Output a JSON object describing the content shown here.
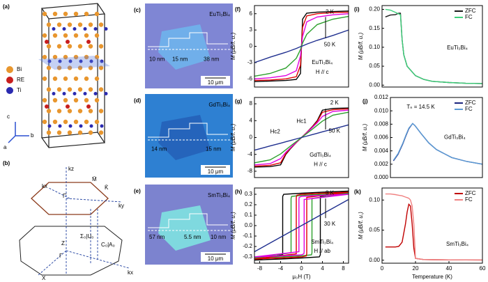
{
  "structure": {
    "label": "(a)",
    "legend": [
      "Bi",
      "RE",
      "Ti"
    ],
    "axes": [
      "c",
      "b",
      "a"
    ]
  },
  "brillouin_zone": {
    "label": "(b)",
    "points": [
      "kz",
      "M̄",
      "Γ̄",
      "K̄",
      "ky",
      "kx",
      "Σ₀|U₀",
      "C₀|A₀",
      "Z",
      "Γ",
      "X",
      "kx"
    ]
  },
  "micrographs": [
    {
      "label": "(c)",
      "compound": "EuTi₃Bi₄",
      "thickness": [
        "10 nm",
        "15 nm",
        "38 nm"
      ],
      "scale": "10 μm"
    },
    {
      "label": "(d)",
      "compound": "GdTi₃Bi₄",
      "thickness": [
        "14 nm",
        "15 nm"
      ],
      "scale": "10 μm"
    },
    {
      "label": "(e)",
      "compound": "SmTi₃Bi₄",
      "thickness": [
        "57 nm",
        "5.5 nm",
        "10 nm"
      ],
      "scale": "10 μm"
    }
  ],
  "chart_data": [
    {
      "type": "line",
      "label": "(f)",
      "ylabel": "M (μB/f. u.)",
      "x": [
        -9,
        -6,
        -3,
        -1,
        -0.2,
        0,
        0.2,
        1,
        3,
        6,
        9
      ],
      "xlim": [
        -9,
        9
      ],
      "ylim": [
        -7.5,
        7.5
      ],
      "yticks": [
        -6,
        -3,
        0,
        3,
        6
      ],
      "series": [
        {
          "color": "#000000",
          "values": [
            -6.5,
            -6.4,
            -6.3,
            -6.1,
            -5,
            0,
            5,
            6.1,
            6.3,
            6.4,
            6.5
          ]
        },
        {
          "color": "#e00000",
          "values": [
            -6.3,
            -6.2,
            -6,
            -5.6,
            -3.5,
            0,
            3.5,
            5.6,
            6,
            6.2,
            6.3
          ]
        },
        {
          "color": "#e000e0",
          "values": [
            -6,
            -5.8,
            -5.4,
            -4.5,
            -1.8,
            0,
            1.8,
            4.5,
            5.4,
            5.8,
            6
          ]
        },
        {
          "color": "#2ca02c",
          "values": [
            -5.5,
            -5,
            -4,
            -2.2,
            -0.6,
            0,
            0.6,
            2.2,
            4,
            5,
            5.5
          ]
        },
        {
          "color": "#1f2f8f",
          "values": [
            -3,
            -2,
            -1.1,
            -0.4,
            -0.07,
            0,
            0.07,
            0.4,
            1.1,
            2,
            3
          ]
        }
      ],
      "annotations": [
        "2 K",
        "50 K"
      ],
      "compound": "EuTi₃Bi₄",
      "field": "H // c"
    },
    {
      "type": "line",
      "label": "(g)",
      "ylabel": "M (μB/f. u.)",
      "x": [
        -9,
        -6,
        -4,
        -3,
        -2,
        -1,
        0,
        1,
        2,
        3,
        4,
        6,
        9
      ],
      "xlim": [
        -9,
        9
      ],
      "ylim": [
        -9.5,
        9.5
      ],
      "yticks": [
        -8,
        -4,
        0,
        4,
        8
      ],
      "series": [
        {
          "color": "#000000",
          "values": [
            -7,
            -6.9,
            -6.5,
            -4,
            -2.5,
            -1.2,
            0,
            1.2,
            2.5,
            4,
            6.5,
            6.9,
            7
          ]
        },
        {
          "color": "#e00000",
          "values": [
            -6.8,
            -6.6,
            -6,
            -3.8,
            -2.4,
            -1.2,
            0,
            1.2,
            2.4,
            3.8,
            6,
            6.6,
            6.8
          ]
        },
        {
          "color": "#e000e0",
          "values": [
            -6.5,
            -6.2,
            -5,
            -3.5,
            -2.3,
            -1.1,
            0,
            1.1,
            2.3,
            3.5,
            5,
            6.2,
            6.5
          ]
        },
        {
          "color": "#2ca02c",
          "values": [
            -6,
            -5.3,
            -3.9,
            -2.9,
            -1.9,
            -0.95,
            0,
            0.95,
            1.9,
            2.9,
            3.9,
            5.3,
            6
          ]
        },
        {
          "color": "#1f2f8f",
          "values": [
            -3,
            -2,
            -1.35,
            -1,
            -0.67,
            -0.33,
            0,
            0.33,
            0.67,
            1,
            1.35,
            2,
            3
          ]
        }
      ],
      "annotations": [
        "2 K",
        "50 K",
        "Hc1",
        "Hc2"
      ],
      "compound": "GdTi₃Bi₄",
      "field": "H // c"
    },
    {
      "type": "line",
      "label": "(h)",
      "ylabel": "M (μB/f. u.)",
      "xlabel": "μ₀H (T)",
      "xlim": [
        -9,
        9
      ],
      "xticks": [
        -8,
        -4,
        0,
        4,
        8
      ],
      "ylim": [
        -0.36,
        0.36
      ],
      "yticks": [
        -0.3,
        -0.2,
        -0.1,
        {
          "value": 0,
          "label": "0.0"
        },
        0.1,
        0.2,
        0.3
      ],
      "series": [
        {
          "color": "#000000",
          "x": [
            9,
            4,
            0,
            -3.4,
            -3.6,
            -3.6,
            -9,
            -4,
            0,
            3.4,
            3.6,
            3.6,
            9
          ],
          "values": [
            0.33,
            0.32,
            0.31,
            0.3,
            0.28,
            -0.28,
            -0.33,
            -0.32,
            -0.31,
            -0.3,
            -0.28,
            0.28,
            0.33
          ]
        },
        {
          "color": "#2ca02c",
          "x": [
            9,
            4,
            0,
            -1.9,
            -2,
            -2,
            -9,
            -4,
            0,
            1.9,
            2,
            2,
            9
          ],
          "values": [
            0.31,
            0.3,
            0.29,
            0.28,
            0.26,
            -0.26,
            -0.31,
            -0.3,
            -0.29,
            -0.28,
            -0.26,
            0.26,
            0.31
          ]
        },
        {
          "color": "#e00000",
          "x": [
            9,
            4,
            0,
            -0.9,
            -1,
            -1,
            -9,
            -4,
            0,
            0.9,
            1,
            1,
            9
          ],
          "values": [
            0.32,
            0.31,
            0.3,
            0.29,
            0.27,
            -0.27,
            -0.32,
            -0.31,
            -0.3,
            -0.29,
            -0.27,
            0.27,
            0.32
          ]
        },
        {
          "color": "#e000e0",
          "x": [
            9,
            4,
            0,
            -0.45,
            -0.5,
            -0.5,
            -9,
            -4,
            0,
            0.45,
            0.5,
            0.5,
            9
          ],
          "values": [
            0.3,
            0.29,
            0.28,
            0.27,
            0.25,
            -0.25,
            -0.3,
            -0.29,
            -0.28,
            -0.27,
            -0.25,
            0.25,
            0.3
          ]
        },
        {
          "color": "#1f2f8f",
          "x": [
            -9,
            9
          ],
          "values": [
            -0.25,
            0.25
          ]
        }
      ],
      "annotations": [
        "3 K",
        "30 K"
      ],
      "compound": "SmTi₃Bi₄",
      "field": "H // ab"
    },
    {
      "type": "line",
      "label": "(i)",
      "ylabel": "M (μB/f. u.)",
      "x": [
        2,
        5,
        8,
        10,
        11,
        12,
        13,
        15,
        20,
        25,
        30,
        40,
        50,
        60
      ],
      "xlim": [
        0,
        60
      ],
      "ylim": [
        -0.005,
        0.21
      ],
      "yticks": [
        {
          "value": 0,
          "label": "0.00"
        },
        0.05,
        {
          "value": 0.1,
          "label": "0.10"
        },
        0.15,
        {
          "value": 0.2,
          "label": "0.20"
        }
      ],
      "series": [
        {
          "name": "ZFC",
          "color": "#1a1a1a",
          "values": [
            0.18,
            0.185,
            0.186,
            0.19,
            0.19,
            0.12,
            0.08,
            0.05,
            0.025,
            0.015,
            0.01,
            0.007,
            0.005,
            0.004
          ]
        },
        {
          "name": "FC",
          "color": "#3ccf7a",
          "values": [
            0.2,
            0.198,
            0.192,
            0.188,
            0.186,
            0.12,
            0.08,
            0.05,
            0.025,
            0.015,
            0.01,
            0.007,
            0.005,
            0.004
          ]
        }
      ],
      "annotations": [],
      "compound": "EuTi₃Bi₄"
    },
    {
      "type": "line",
      "label": "(j)",
      "ylabel": "M (μB/f. u.)",
      "x": [
        2,
        5,
        8,
        10,
        12,
        14.5,
        16,
        20,
        25,
        30,
        40,
        50,
        60
      ],
      "xlim": [
        0,
        60
      ],
      "ylim": [
        0,
        0.012
      ],
      "yticks": [
        {
          "value": 0,
          "label": "0.000"
        },
        0.002,
        0.004,
        0.006,
        0.008,
        {
          "value": 0.01,
          "label": "0.010"
        },
        0.012
      ],
      "series": [
        {
          "name": "ZFC",
          "color": "#1a237e",
          "values": [
            0.0025,
            0.0035,
            0.005,
            0.0062,
            0.0073,
            0.0081,
            0.0078,
            0.0066,
            0.0052,
            0.0042,
            0.003,
            0.0024,
            0.002
          ]
        },
        {
          "name": "FC",
          "color": "#5b9bd5",
          "values": [
            0.0026,
            0.0036,
            0.0051,
            0.0063,
            0.0074,
            0.0081,
            0.0078,
            0.0066,
            0.0052,
            0.0042,
            0.003,
            0.0024,
            0.002
          ]
        }
      ],
      "annotations": [
        "Tₙ = 14.5 K"
      ],
      "compound": "GdTi₃Bi₄"
    },
    {
      "type": "line",
      "label": "(k)",
      "ylabel": "M (μB/f. u.)",
      "xlabel": "Temperature (K)",
      "x": [
        2,
        5,
        8,
        10,
        12,
        14,
        15,
        16,
        17,
        18,
        19,
        20,
        25,
        30,
        40,
        50,
        60
      ],
      "xlim": [
        0,
        60
      ],
      "xticks": [
        0,
        20,
        40,
        60
      ],
      "ylim": [
        -0.005,
        0.12
      ],
      "yticks": [
        {
          "value": 0,
          "label": "0.00"
        },
        0.05,
        {
          "value": 0.1,
          "label": "0.10"
        }
      ],
      "series": [
        {
          "name": "ZFC",
          "color": "#c00000",
          "values": [
            0.022,
            0.022,
            0.022,
            0.023,
            0.03,
            0.06,
            0.08,
            0.093,
            0.09,
            0.06,
            0.02,
            0.003,
            0.001,
            0.0008,
            0.0005,
            0.0004,
            0.0003
          ]
        },
        {
          "name": "FC",
          "color": "#f08080",
          "values": [
            0.11,
            0.11,
            0.109,
            0.108,
            0.107,
            0.105,
            0.104,
            0.103,
            0.1,
            0.09,
            0.06,
            0.003,
            0.001,
            0.0008,
            0.0005,
            0.0004,
            0.0003
          ]
        }
      ],
      "annotations": [],
      "compound": "SmTi₃Bi₄"
    }
  ]
}
